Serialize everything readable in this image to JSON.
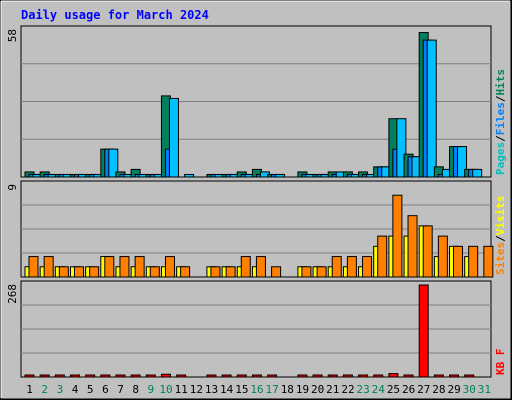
{
  "chart_data": {
    "type": "bar",
    "title": "Daily usage for March 2024",
    "colors": {
      "background": "#C0C0C0",
      "title": "#0000FF",
      "hits": "#00C0FF",
      "files": "#0080FF",
      "pages": "#00C0C0",
      "pages_bar": "#00805C",
      "visits": "#FFFF00",
      "sites": "#FF8000",
      "kbytes": "#FF0000",
      "weekend_label": "#00805C",
      "weekday_label": "#000000"
    },
    "days": [
      "1",
      "2",
      "3",
      "4",
      "5",
      "6",
      "7",
      "8",
      "9",
      "10",
      "11",
      "12",
      "13",
      "14",
      "15",
      "16",
      "17",
      "18",
      "19",
      "20",
      "21",
      "22",
      "23",
      "24",
      "25",
      "26",
      "27",
      "28",
      "29",
      "30",
      "31"
    ],
    "weekend_days": [
      "2",
      "3",
      "9",
      "10",
      "16",
      "17",
      "23",
      "24",
      "30",
      "31"
    ],
    "panels": [
      {
        "id": "hits",
        "max_label": "58",
        "ymax": 58,
        "legend": [
          {
            "text": "Pages",
            "color": "#00C0C0"
          },
          {
            "text": "/",
            "color": "#000000"
          },
          {
            "text": "Files",
            "color": "#0080FF"
          },
          {
            "text": "/",
            "color": "#000000"
          },
          {
            "text": "Hits",
            "color": "#00805C"
          }
        ],
        "series": [
          {
            "name": "Hits",
            "color": "#00805C",
            "values": [
              2,
              2,
              1,
              1,
              1,
              11,
              2,
              3,
              1,
              32,
              0,
              0,
              1,
              1,
              2,
              3,
              1,
              0,
              2,
              1,
              2,
              2,
              2,
              4,
              23,
              9,
              57,
              4,
              12,
              3,
              0
            ]
          },
          {
            "name": "Files",
            "color": "#0080FF",
            "values": [
              1,
              1,
              1,
              1,
              1,
              11,
              1,
              1,
              1,
              11,
              0,
              0,
              1,
              1,
              1,
              1,
              1,
              0,
              1,
              1,
              1,
              1,
              1,
              4,
              11,
              8,
              54,
              1,
              12,
              3,
              0
            ]
          },
          {
            "name": "Pages",
            "color": "#00C0FF",
            "values": [
              1,
              1,
              1,
              1,
              1,
              11,
              1,
              1,
              1,
              31,
              1,
              0,
              1,
              1,
              1,
              2,
              1,
              0,
              1,
              1,
              2,
              1,
              1,
              4,
              23,
              8,
              54,
              3,
              12,
              3,
              0
            ]
          }
        ]
      },
      {
        "id": "visits",
        "max_label": "9",
        "ymax": 9,
        "legend": [
          {
            "text": "Sites",
            "color": "#FF8000"
          },
          {
            "text": "/",
            "color": "#000000"
          },
          {
            "text": "Visits",
            "color": "#FFFF00"
          }
        ],
        "series": [
          {
            "name": "Visits",
            "color": "#FFFF00",
            "values": [
              1,
              1,
              1,
              1,
              1,
              2,
              1,
              1,
              1,
              1,
              1,
              0,
              1,
              1,
              1,
              1,
              0,
              0,
              1,
              1,
              1,
              1,
              1,
              3,
              4,
              4,
              5,
              2,
              3,
              2,
              0
            ]
          },
          {
            "name": "Sites",
            "color": "#FF8000",
            "values": [
              2,
              2,
              1,
              1,
              1,
              2,
              2,
              2,
              1,
              2,
              1,
              0,
              1,
              1,
              2,
              2,
              1,
              0,
              1,
              1,
              2,
              2,
              2,
              4,
              8,
              6,
              5,
              4,
              3,
              3,
              3
            ]
          }
        ]
      },
      {
        "id": "kbytes",
        "max_label": "268",
        "ymax": 268,
        "legend": [
          {
            "text": "KB F",
            "color": "#FF0000"
          }
        ],
        "series": [
          {
            "name": "KB F",
            "color": "#FF0000",
            "values": [
              2,
              2,
              2,
              2,
              2,
              2,
              2,
              2,
              2,
              8,
              2,
              0,
              2,
              2,
              2,
              4,
              2,
              0,
              2,
              2,
              2,
              2,
              2,
              2,
              10,
              2,
              268,
              4,
              4,
              4,
              0
            ]
          }
        ]
      }
    ]
  }
}
